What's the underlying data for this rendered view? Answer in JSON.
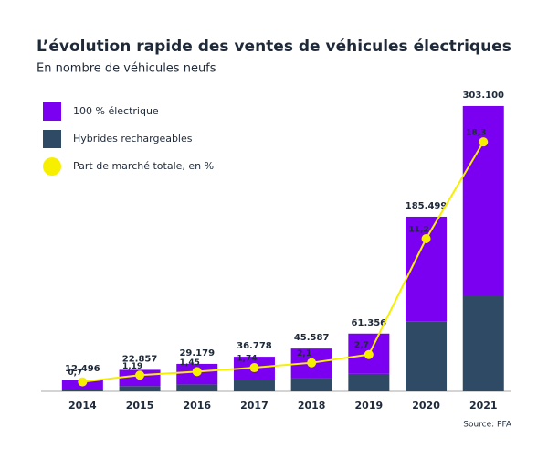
{
  "chart_data": {
    "type": "bar",
    "title": "L’évolution rapide des ventes de véhicules électriques",
    "subtitle": "En nombre de véhicules neufs",
    "source": "Source: PFA",
    "categories": [
      "2014",
      "2015",
      "2016",
      "2017",
      "2018",
      "2019",
      "2020",
      "2021"
    ],
    "series": [
      {
        "name": "100 % électrique",
        "color": "#7b00f2",
        "values": [
          10600,
          17300,
          21800,
          25000,
          31000,
          42800,
          111000,
          202000
        ]
      },
      {
        "name": "Hybrides rechargeables",
        "color": "#2f4a64",
        "values": [
          1900,
          5600,
          7400,
          11800,
          14500,
          18600,
          74500,
          101000
        ]
      },
      {
        "name": "Part de marché totale, en %",
        "type": "line",
        "axis": "y2",
        "color": "#f7ef00",
        "values": [
          0.7,
          1.19,
          1.45,
          1.74,
          2.1,
          2.7,
          11.2,
          18.3
        ],
        "value_labels": [
          "0,7",
          "1,19",
          "1,45",
          "1,74",
          "2,1",
          "2,7",
          "11,2",
          "18,3"
        ]
      }
    ],
    "totals": [
      12496,
      22857,
      29179,
      36778,
      45587,
      61356,
      185499,
      303100
    ],
    "total_labels": [
      "12.496",
      "22.857",
      "29.179",
      "36.778",
      "45.587",
      "61.356",
      "185.499",
      "303.100"
    ],
    "ylim": [
      0,
      318500
    ],
    "y2lim": [
      0,
      22
    ]
  }
}
